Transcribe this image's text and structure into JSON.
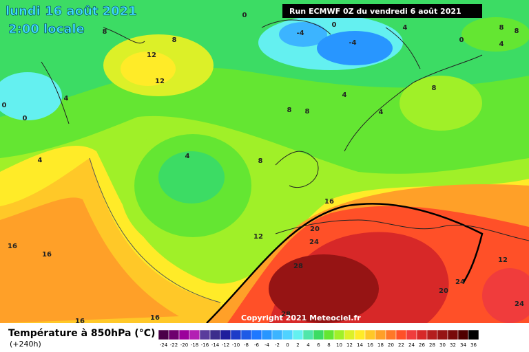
{
  "header": {
    "date": "lundi 16 août 2021",
    "time": "2:00 locale",
    "run": "Run ECMWF 0Z du vendredi 6 août 2021"
  },
  "copyright": "Copyright 2021 Meteociel.fr",
  "legend": {
    "title": "Température à 850hPa (°C)",
    "lead": "(+240h)",
    "scale": [
      -24,
      -22,
      -20,
      -18,
      -16,
      -14,
      -12,
      -10,
      -8,
      -6,
      -4,
      -2,
      0,
      2,
      4,
      6,
      8,
      10,
      12,
      14,
      16,
      18,
      20,
      22,
      24,
      26,
      28,
      30,
      32,
      34,
      36
    ],
    "colors": [
      "#4b0049",
      "#6e006e",
      "#9b009b",
      "#b31fb3",
      "#5a3c9c",
      "#3c2d8c",
      "#1e1e9c",
      "#1e3cc8",
      "#1e5ae6",
      "#1e78ff",
      "#2896ff",
      "#3cb4ff",
      "#50d2ff",
      "#64f0f0",
      "#50e6aa",
      "#3cdc64",
      "#64e632",
      "#a0f028",
      "#dcf028",
      "#ffeb28",
      "#ffc828",
      "#ffa028",
      "#ff7828",
      "#ff5028",
      "#f03c3c",
      "#d72828",
      "#b41e1e",
      "#961414",
      "#780a0a",
      "#500000",
      "#000000"
    ]
  },
  "contour_labels": [
    0,
    8,
    8,
    12,
    12,
    -4,
    -4,
    0,
    4,
    0,
    8,
    8,
    4,
    0,
    0,
    4,
    4,
    4,
    8,
    8,
    4,
    8,
    4,
    8,
    16,
    20,
    24,
    12,
    16,
    16,
    28,
    12,
    24,
    20,
    24,
    28,
    16,
    16
  ]
}
